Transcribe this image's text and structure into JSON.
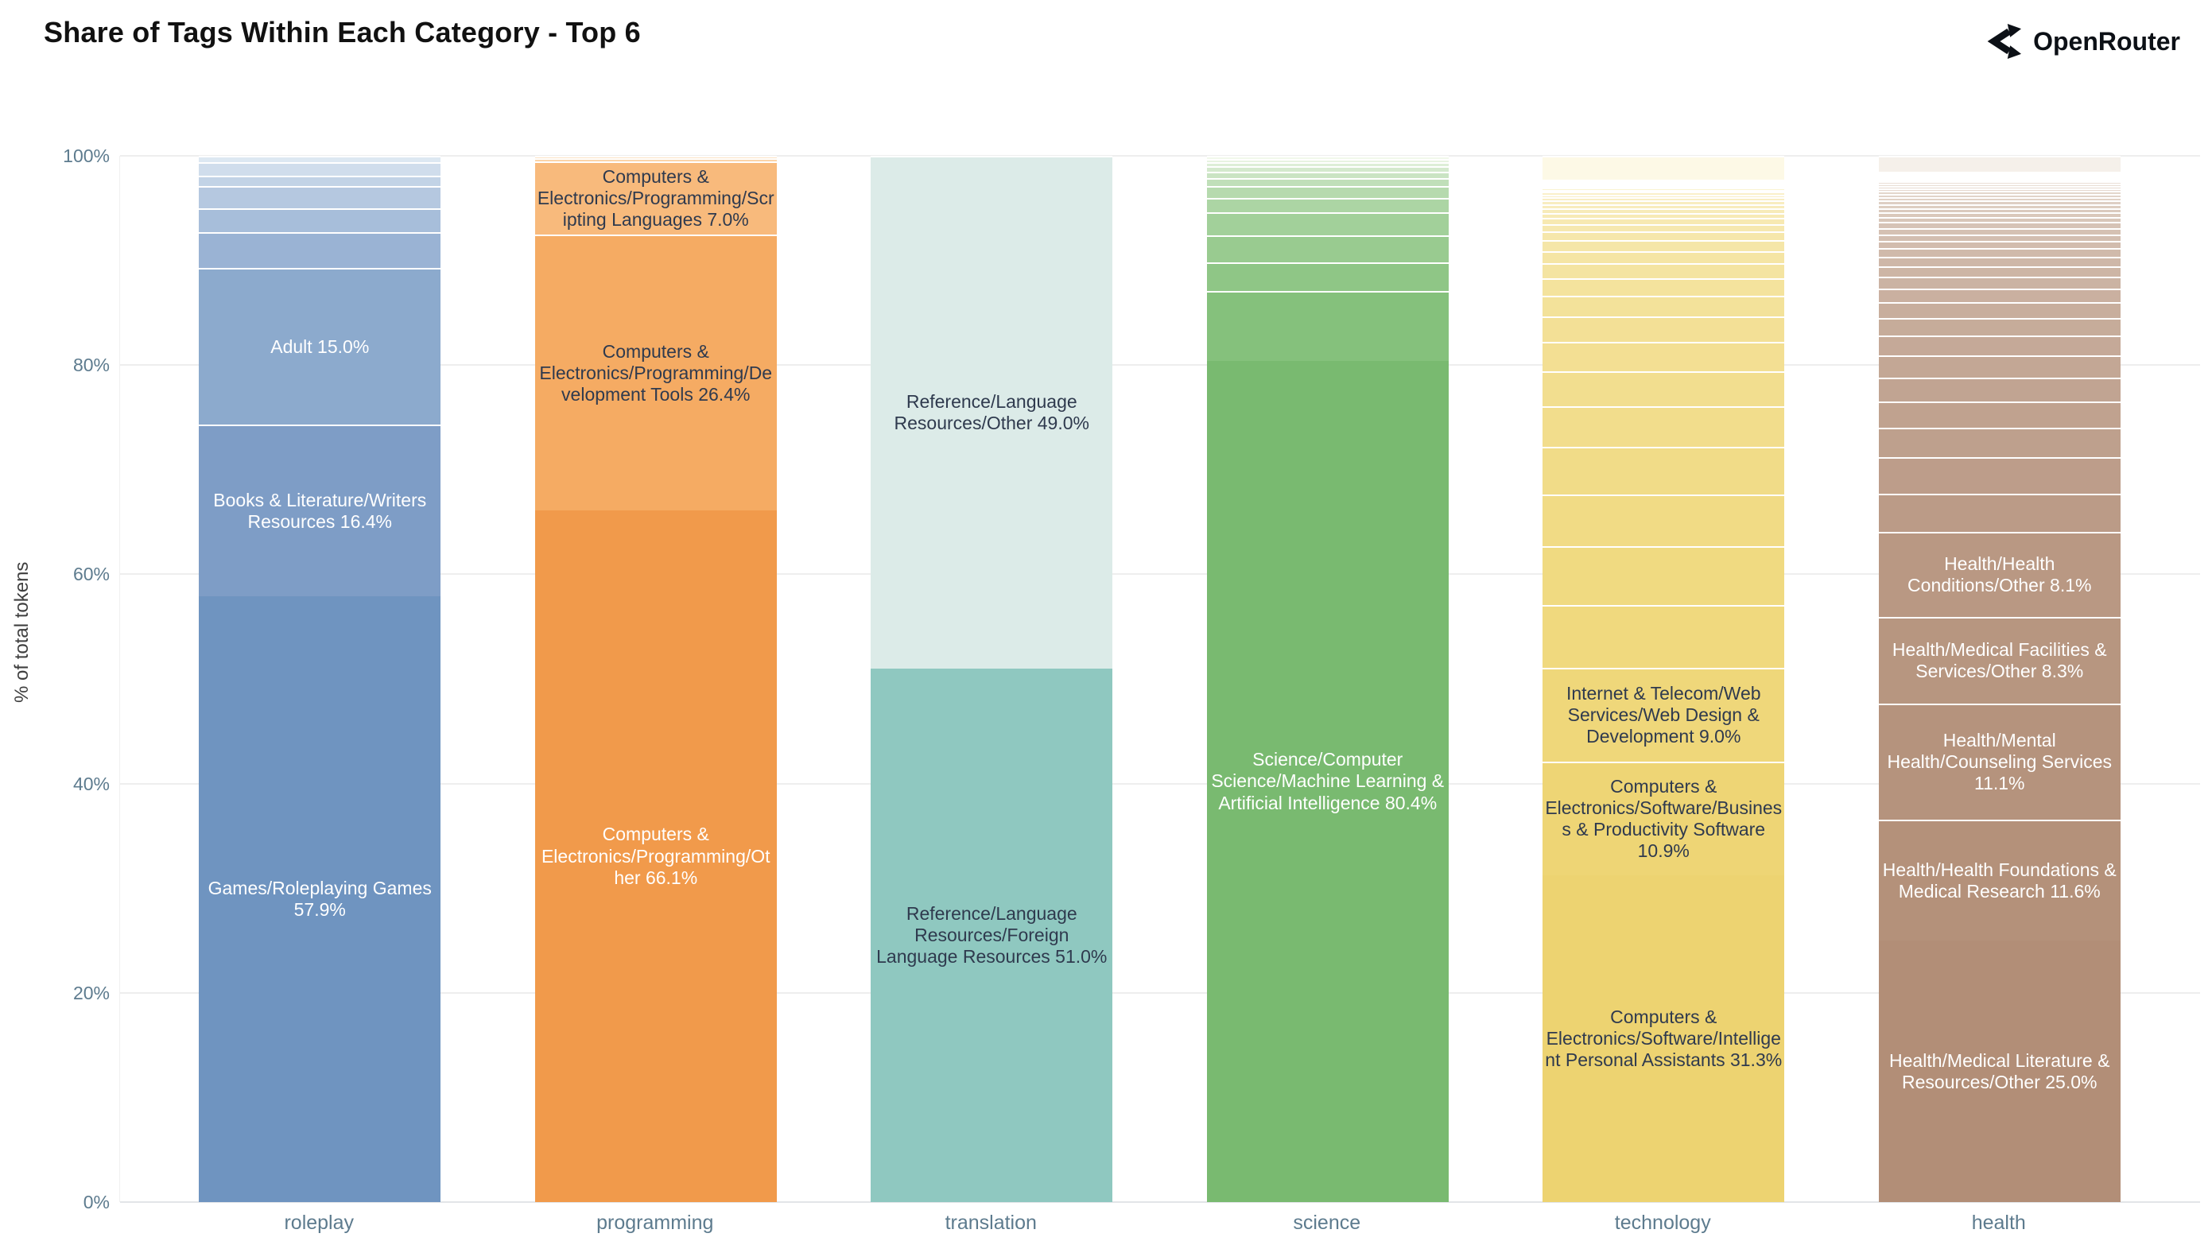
{
  "header": {
    "title": "Share of Tags Within Each Category - Top 6",
    "brand": "OpenRouter"
  },
  "axes": {
    "y_title": "% of total tokens",
    "y_ticks": [
      {
        "label": "0%",
        "value": 0
      },
      {
        "label": "20%",
        "value": 20
      },
      {
        "label": "40%",
        "value": 40
      },
      {
        "label": "60%",
        "value": 60
      },
      {
        "label": "80%",
        "value": 80
      },
      {
        "label": "100%",
        "value": 100
      }
    ]
  },
  "colors": {
    "background": "#ffffff",
    "gridline": "#eeeeee",
    "axis_line": "#e2e5e8",
    "tick_text": "#5d7b8e",
    "dark_label": "#2f3a4e",
    "white_label": "#ffffff",
    "title_text": "#111111",
    "brand_text": "#0c1016"
  },
  "chart_data": {
    "type": "bar",
    "stacked": true,
    "orientation": "vertical",
    "title": "Share of Tags Within Each Category - Top 6",
    "xlabel": "",
    "ylabel": "% of total tokens",
    "ylim": [
      0,
      100
    ],
    "grid": true,
    "categories": [
      "roleplay",
      "programming",
      "translation",
      "science",
      "technology",
      "health"
    ],
    "bars": [
      {
        "category": "roleplay",
        "segments_bottom_to_top": [
          {
            "label": "Games/Roleplaying Games",
            "value": 57.9,
            "color": "#6f94c0",
            "text_color": "#ffffff"
          },
          {
            "label": "Books & Literature/Writers Resources",
            "value": 16.4,
            "color": "#7e9dc6",
            "text_color": "#ffffff"
          },
          {
            "label": "Adult",
            "value": 15.0,
            "color": "#8caacd",
            "text_color": "#ffffff"
          }
        ],
        "other_segments_bottom_to_top": {
          "values": [
            3.4,
            2.3,
            2.1,
            1.0,
            1.3,
            0.6
          ],
          "color_from": "#9ab3d4",
          "color_to": "#dde8f2"
        }
      },
      {
        "category": "programming",
        "segments_bottom_to_top": [
          {
            "label": "Computers & Electronics/Programming/Other",
            "value": 66.1,
            "color": "#f19a4b",
            "text_color": "#ffffff"
          },
          {
            "label": "Computers & Electronics/Programming/Development Tools",
            "value": 26.4,
            "color": "#f5ab63",
            "text_color": "#2f3a4e"
          },
          {
            "label": "Computers & Electronics/Programming/Scripting Languages",
            "value": 7.0,
            "color": "#f8ba7c",
            "text_color": "#2f3a4e"
          }
        ],
        "other_segments_bottom_to_top": {
          "values": [
            0.3,
            0.2
          ],
          "color_from": "#fbd4a8",
          "color_to": "#fce3c4"
        }
      },
      {
        "category": "translation",
        "segments_bottom_to_top": [
          {
            "label": "Reference/Language Resources/Foreign Language Resources",
            "value": 51.0,
            "color": "#8fc8c0",
            "text_color": "#2f3a4e"
          },
          {
            "label": "Reference/Language Resources/Other",
            "value": 49.0,
            "color": "#dcebe8",
            "text_color": "#2f3a4e"
          }
        ],
        "other_segments_bottom_to_top": {
          "values": [],
          "color_from": "#eaf4f2",
          "color_to": "#f5faf9"
        }
      },
      {
        "category": "science",
        "segments_bottom_to_top": [
          {
            "label": "Science/Computer Science/Machine Learning & Artificial Intelligence",
            "value": 80.4,
            "color": "#79ba70",
            "text_color": "#ffffff"
          }
        ],
        "other_segments_bottom_to_top": {
          "values": [
            6.7,
            2.7,
            2.6,
            2.2,
            1.4,
            1.1,
            0.8,
            0.6,
            0.5,
            0.4,
            0.3,
            0.3
          ],
          "color_from": "#85c17c",
          "color_to": "#f1f8eb"
        }
      },
      {
        "category": "technology",
        "segments_bottom_to_top": [
          {
            "label": "Computers & Electronics/Software/Intelligent Personal Assistants",
            "value": 31.3,
            "color": "#edd371",
            "text_color": "#2f3a4e"
          },
          {
            "label": "Computers & Electronics/Software/Business & Productivity Software",
            "value": 10.9,
            "color": "#eed575",
            "text_color": "#2f3a4e"
          },
          {
            "label": "Internet & Telecom/Web Services/Web Design & Development",
            "value": 9.0,
            "color": "#efd77a",
            "text_color": "#2f3a4e"
          }
        ],
        "other_segments_bottom_to_top": {
          "values": [
            6.0,
            5.6,
            5.0,
            4.5,
            3.9,
            3.4,
            2.8,
            2.4,
            2.0,
            1.7,
            1.4,
            1.2,
            1.0,
            0.85,
            0.7,
            0.6,
            0.5,
            0.45,
            0.4,
            0.35,
            0.3,
            0.25,
            0.25,
            0.2,
            0.2,
            0.15,
            0.15,
            0.1,
            0.1,
            0.1,
            2.3
          ],
          "color_from": "#f0d97e",
          "color_to": "#fdf9e6"
        }
      },
      {
        "category": "health",
        "segments_bottom_to_top": [
          {
            "label": "Health/Medical Literature & Resources/Other",
            "value": 25.0,
            "color": "#b28e77",
            "text_color": "#ffffff"
          },
          {
            "label": "Health/Health Foundations & Medical Research",
            "value": 11.6,
            "color": "#b4917a",
            "text_color": "#ffffff"
          },
          {
            "label": "Health/Mental Health/Counseling Services",
            "value": 11.1,
            "color": "#b5937d",
            "text_color": "#ffffff"
          },
          {
            "label": "Health/Medical Facilities & Services/Other",
            "value": 8.3,
            "color": "#b79680",
            "text_color": "#ffffff"
          },
          {
            "label": "Health/Health Conditions/Other",
            "value": 8.1,
            "color": "#b99883",
            "text_color": "#ffffff"
          }
        ],
        "other_segments_bottom_to_top": {
          "values": [
            3.7,
            3.5,
            2.8,
            2.5,
            2.3,
            2.1,
            1.9,
            1.7,
            1.5,
            1.3,
            1.15,
            1.0,
            0.9,
            0.8,
            0.7,
            0.65,
            0.6,
            0.55,
            0.5,
            0.45,
            0.4,
            0.38,
            0.35,
            0.32,
            0.3,
            0.28,
            0.26,
            0.24,
            0.22,
            0.2,
            0.18,
            0.16,
            0.15,
            0.13,
            0.12,
            0.1,
            1.5
          ],
          "color_from": "#bb9b87",
          "color_to": "#f5f0ea"
        }
      }
    ]
  }
}
